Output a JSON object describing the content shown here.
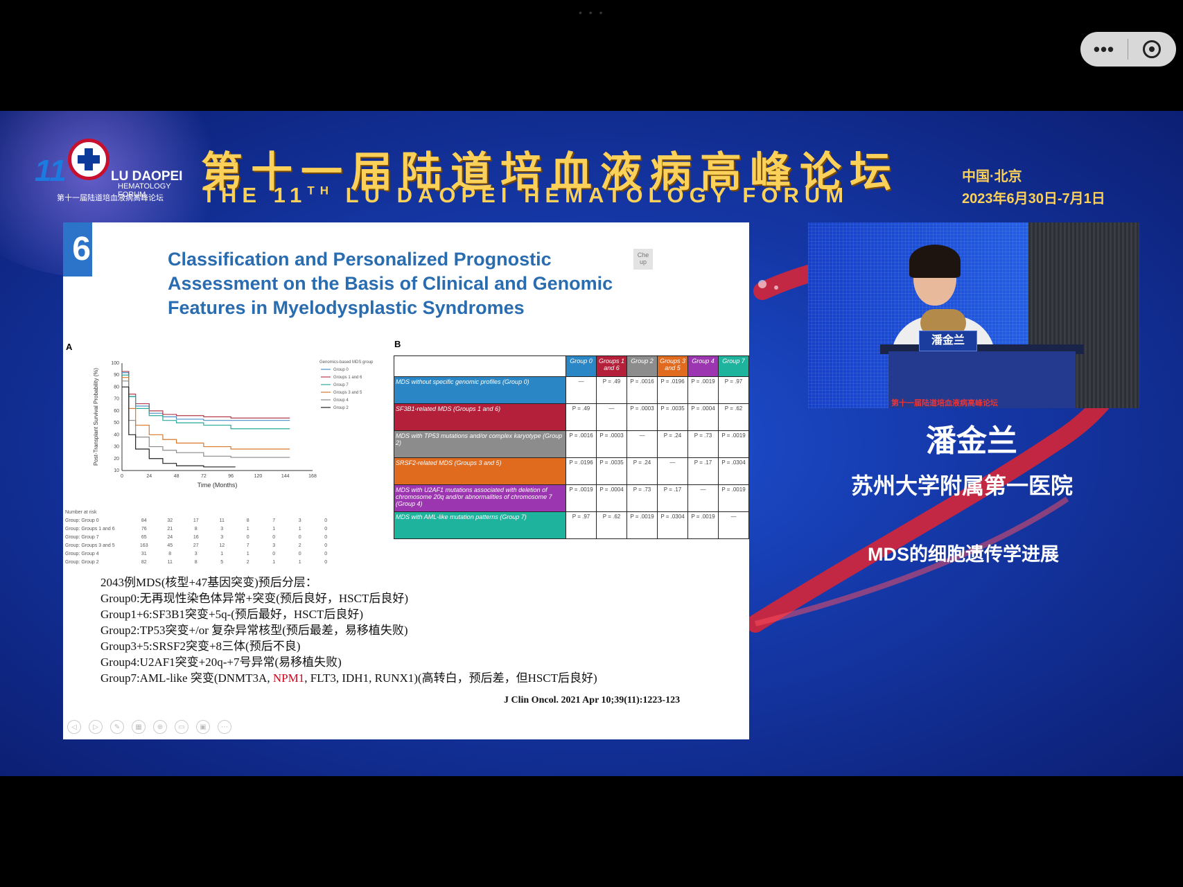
{
  "topbar": {
    "dots": "• • •",
    "more_icon": "more-dots-icon",
    "record_icon": "record-target-icon"
  },
  "header": {
    "logo": {
      "number": "11",
      "name": "LU DAOPEI",
      "sub": "HEMATOLOGY FORUM",
      "cn": "第十一届陆道培血液病高峰论坛"
    },
    "title_cn": "第十一届陆道培血液病高峰论坛",
    "title_en_pre": "THE 11",
    "title_en_sup": "TH",
    "title_en_post": " LU DAOPEI HEMATOLOGY FORUM",
    "location": "中国·北京",
    "date": "2023年6月30日-7月1日"
  },
  "slide": {
    "number": "6",
    "corner_tag": "Che up",
    "title": "Classification and Personalized Prognostic Assessment on the Basis of Clinical and Genomic Features in Myelodysplastic Syndromes",
    "panel_a": "A",
    "panel_b": "B",
    "notes": [
      "2043例MDS(核型+47基因突变)预后分层：",
      "Group0:无再现性染色体异常+突变(预后良好，HSCT后良好)",
      "Group1+6:SF3B1突变+5q-(预后最好，HSCT后良好)",
      "Group2:TP53突变+/or 复杂异常核型(预后最差，易移植失败)",
      "Group3+5:SRSF2突变+8三体(预后不良)",
      "Group4:U2AF1突变+20q-+7号异常(易移植失败)"
    ],
    "note7": {
      "pre": "Group7:AML-like 突变(DNMT3A, ",
      "red": "NPM1",
      "post": ", FLT3, IDH1, RUNX1)(高转白，预后差，但HSCT后良好)"
    },
    "citation": "J Clin Oncol. 2021 Apr 10;39(11):1223-123"
  },
  "chart_data": {
    "type": "line",
    "xlabel": "Time (Months)",
    "ylabel": "Post-Transplant Survival Probability (%)",
    "xlim": [
      0,
      168
    ],
    "ylim": [
      10,
      100
    ],
    "x_ticks": [
      "0",
      "24",
      "48",
      "72",
      "96",
      "120",
      "144",
      "168"
    ],
    "y_ticks": [
      "100",
      "90",
      "80",
      "70",
      "60",
      "50",
      "40",
      "30",
      "20",
      "10"
    ],
    "legend_title": "Genomics-based MDS group",
    "legend_position": "top-right",
    "series": [
      {
        "name": "Group 0",
        "color": "#4a90c8",
        "x": [
          0,
          6,
          12,
          24,
          36,
          48,
          72,
          96,
          120,
          144
        ],
        "y": [
          92,
          72,
          64,
          58,
          55,
          53,
          52,
          52,
          52,
          52
        ]
      },
      {
        "name": "Groups 1 and 6",
        "color": "#b23a4a",
        "x": [
          0,
          6,
          12,
          24,
          36,
          48,
          72,
          96,
          120,
          144
        ],
        "y": [
          93,
          74,
          66,
          60,
          57,
          56,
          55,
          54,
          54,
          54
        ]
      },
      {
        "name": "Group 7",
        "color": "#27a99a",
        "x": [
          0,
          6,
          12,
          24,
          36,
          48,
          72,
          96,
          120,
          144
        ],
        "y": [
          90,
          72,
          62,
          56,
          52,
          50,
          48,
          45,
          45,
          45
        ]
      },
      {
        "name": "Groups 3 and 5",
        "color": "#d9772b",
        "x": [
          0,
          6,
          12,
          24,
          36,
          48,
          72,
          96,
          120,
          144
        ],
        "y": [
          88,
          62,
          48,
          40,
          36,
          33,
          30,
          28,
          28,
          28
        ]
      },
      {
        "name": "Group 4",
        "color": "#8a8a8a",
        "x": [
          0,
          6,
          12,
          24,
          36,
          48,
          72,
          96,
          120,
          144
        ],
        "y": [
          85,
          52,
          38,
          30,
          27,
          25,
          22,
          21,
          21,
          21
        ]
      },
      {
        "name": "Group 2",
        "color": "#222222",
        "x": [
          0,
          6,
          12,
          24,
          36,
          48,
          72,
          96
        ],
        "y": [
          80,
          40,
          28,
          20,
          16,
          14,
          13,
          13
        ]
      }
    ],
    "at_risk": {
      "title": "Number at risk",
      "rows": [
        {
          "group": "Group: Group 0",
          "values": [
            "84",
            "32",
            "17",
            "11",
            "8",
            "7",
            "3",
            "0"
          ]
        },
        {
          "group": "Group: Groups 1 and 6",
          "values": [
            "76",
            "21",
            "8",
            "3",
            "1",
            "1",
            "1",
            "0"
          ]
        },
        {
          "group": "Group: Group 7",
          "values": [
            "65",
            "24",
            "16",
            "3",
            "0",
            "0",
            "0",
            "0"
          ]
        },
        {
          "group": "Group: Groups 3 and 5",
          "values": [
            "163",
            "45",
            "27",
            "12",
            "7",
            "3",
            "2",
            "0"
          ]
        },
        {
          "group": "Group: Group 4",
          "values": [
            "31",
            "8",
            "3",
            "1",
            "1",
            "0",
            "0",
            "0"
          ]
        },
        {
          "group": "Group: Group 2",
          "values": [
            "82",
            "11",
            "8",
            "5",
            "2",
            "1",
            "1",
            "0"
          ]
        }
      ]
    }
  },
  "group_table": {
    "headers": [
      {
        "label": "Group 0",
        "color": "#2a86c4"
      },
      {
        "label": "Groups 1 and 6",
        "color": "#b41f3a"
      },
      {
        "label": "Group 2",
        "color": "#8c8c8c"
      },
      {
        "label": "Groups 3 and 5",
        "color": "#e06a1e"
      },
      {
        "label": "Group 4",
        "color": "#9b35b0"
      },
      {
        "label": "Group 7",
        "color": "#1eb39c"
      }
    ],
    "rows": [
      {
        "label": "MDS without specific genomic profiles (Group 0)",
        "color": "#2a86c4",
        "cells": [
          "—",
          "P = .49",
          "P = .0016",
          "P = .0196",
          "P = .0019",
          "P = .97"
        ]
      },
      {
        "label": "SF3B1-related MDS (Groups 1 and 6)",
        "color": "#b41f3a",
        "cells": [
          "P = .49",
          "—",
          "P = .0003",
          "P = .0035",
          "P = .0004",
          "P = .62"
        ]
      },
      {
        "label": "MDS with TP53 mutations and/or complex karyotype (Group 2)",
        "color": "#8c8c8c",
        "cells": [
          "P = .0016",
          "P = .0003",
          "—",
          "P = .24",
          "P = .73",
          "P = .0019"
        ]
      },
      {
        "label": "SRSF2-related MDS (Groups 3 and 5)",
        "color": "#e06a1e",
        "cells": [
          "P = .0196",
          "P = .0035",
          "P = .24",
          "—",
          "P = .17",
          "P = .0304"
        ]
      },
      {
        "label": "MDS with U2AF1 mutations associated with deletion of chromosome 20q and/or abnormalities of chromosome 7 (Group 4)",
        "color": "#9b35b0",
        "cells": [
          "P = .0019",
          "P = .0004",
          "P = .73",
          "P = .17",
          "—",
          "P = .0019"
        ]
      },
      {
        "label": "MDS with AML-like mutation patterns (Group 7)",
        "color": "#1eb39c",
        "cells": [
          "P = .97",
          "P = .62",
          "P = .0019",
          "P = .0304",
          "P = .0019",
          "—"
        ]
      }
    ]
  },
  "video": {
    "nameplate": "潘金兰",
    "banner": "第十一届陆道培血液病高峰论坛"
  },
  "speaker": {
    "name": "潘金兰",
    "affiliation": "苏州大学附属第一医院",
    "topic": "MDS的细胞遗传学进展"
  }
}
